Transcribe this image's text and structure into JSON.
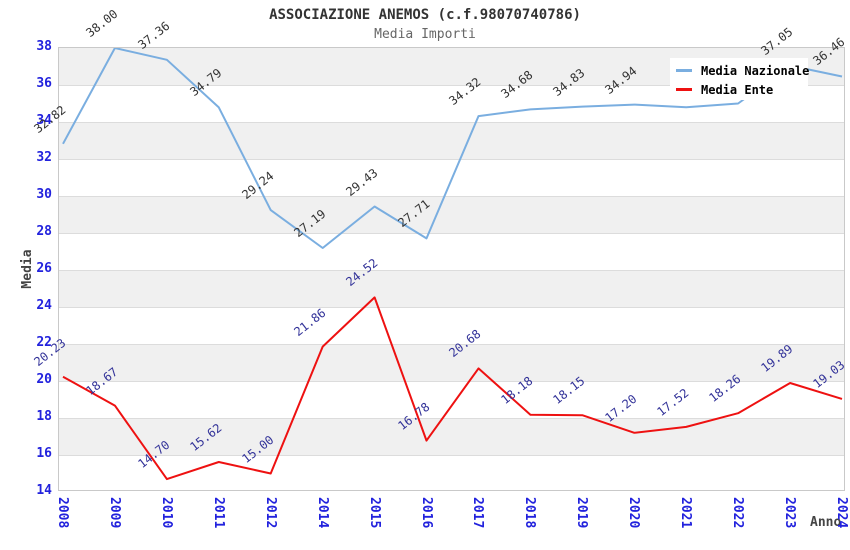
{
  "title": "ASSOCIAZIONE ANEMOS (c.f.98070740786)",
  "subtitle": "Media Importi",
  "axes": {
    "y_title": "Media",
    "x_title": "Anno",
    "y_ticks": [
      38,
      36,
      34,
      32,
      30,
      28,
      26,
      24,
      22,
      20,
      18,
      16,
      14
    ],
    "ylim": [
      14,
      38
    ],
    "tick_label_color": "#2222dd",
    "axis_title_color": "#444444"
  },
  "colors": {
    "background": "#ffffff",
    "band": "#f0f0f0",
    "grid": "#dcdcdc",
    "plot_border": "#c9c9c9",
    "title": "#333333",
    "subtitle": "#666666",
    "legend_background": "#ffffff"
  },
  "chart_data": {
    "type": "line",
    "title": "ASSOCIAZIONE ANEMOS (c.f.98070740786)",
    "subtitle": "Media Importi",
    "xlabel": "Anno",
    "ylabel": "Media",
    "ylim": [
      14,
      38
    ],
    "y_tick_step": 2,
    "grid": "horizontal gridlines every 2 units with alternating gray/white background bands",
    "legend_position": "top-right",
    "categories": [
      "2008",
      "2009",
      "2010",
      "2011",
      "2012",
      "2014",
      "2015",
      "2016",
      "2017",
      "2018",
      "2019",
      "2020",
      "2021",
      "2022",
      "2023",
      "2024"
    ],
    "series": [
      {
        "name": "Media Nazionale",
        "color": "#7aaee0",
        "label_color": "#333333",
        "values": [
          32.82,
          38.0,
          37.36,
          34.79,
          29.24,
          27.19,
          29.43,
          27.71,
          34.32,
          34.68,
          34.83,
          34.94,
          34.8,
          35.0,
          37.05,
          36.46
        ],
        "point_labels": [
          "32.82",
          "38.00",
          "37.36",
          "34.79",
          "29.24",
          "27.19",
          "29.43",
          "27.71",
          "34.32",
          "34.68",
          "34.83",
          "34.94",
          "",
          "",
          "37.05",
          "36.46"
        ]
      },
      {
        "name": "Media Ente",
        "color": "#ee1111",
        "label_color": "#333399",
        "values": [
          20.23,
          18.67,
          14.7,
          15.62,
          15.0,
          21.86,
          24.52,
          16.78,
          20.68,
          18.18,
          18.15,
          17.2,
          17.52,
          18.26,
          19.89,
          19.03
        ],
        "point_labels": [
          "20.23",
          "18.67",
          "14.70",
          "15.62",
          "15.00",
          "21.86",
          "24.52",
          "16.78",
          "20.68",
          "18.18",
          "18.15",
          "17.20",
          "17.52",
          "18.26",
          "19.89",
          "19.03"
        ]
      }
    ]
  }
}
